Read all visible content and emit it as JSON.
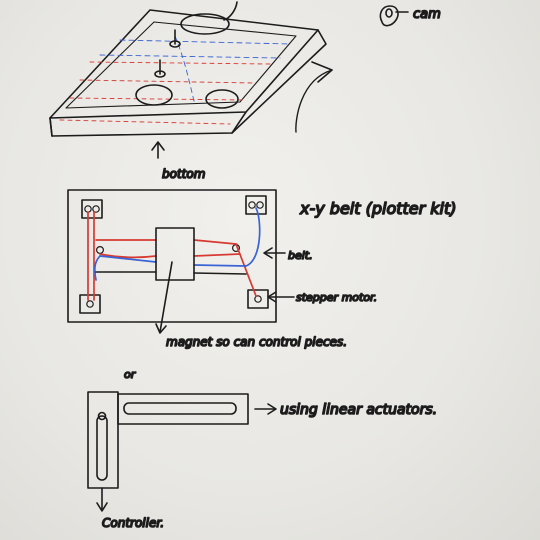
{
  "labels": {
    "cam": "cam",
    "bottom": "bottom",
    "xy_belt": "x-y belt (plotter kit)",
    "belt": "belt.",
    "stepper_motor": "stepper motor.",
    "magnet": "magnet so can control pieces.",
    "or": "or",
    "linear_actuators": "using linear actuators.",
    "controller": "Controller."
  },
  "colors": {
    "ink": "#1c1c1c",
    "red_belt": "#d63a32",
    "blue_belt": "#3a63d6",
    "paper": "#eceae6"
  }
}
